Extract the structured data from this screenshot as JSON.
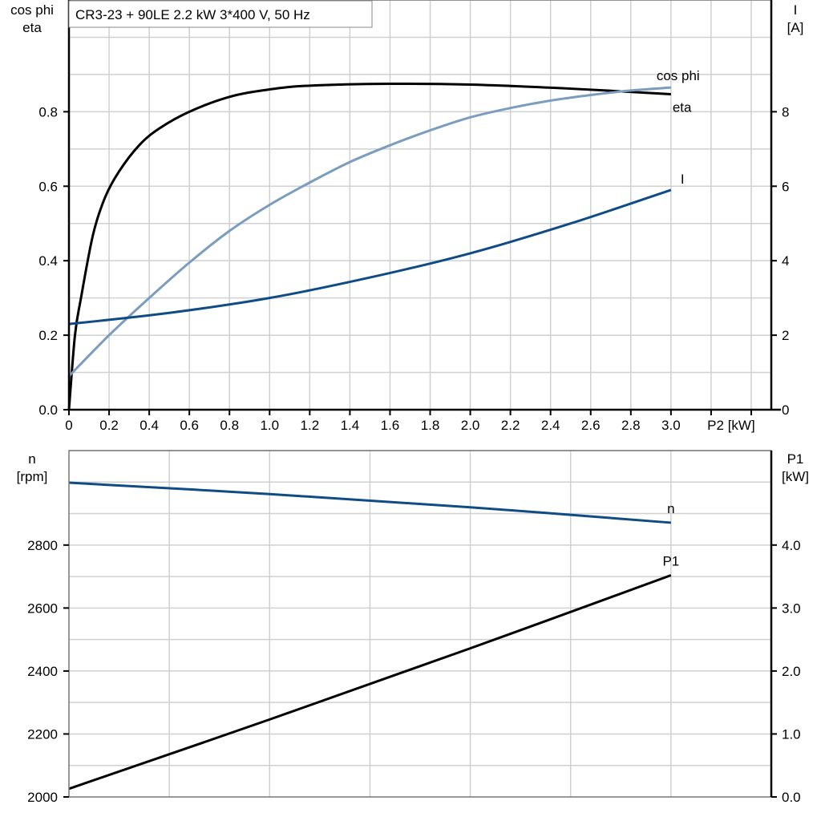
{
  "title": "CR3-23 + 90LE   2.2 kW   3*400 V, 50 Hz",
  "chart_data": [
    {
      "type": "line",
      "xlabel": "P2 [kW]",
      "xlim": [
        0,
        3.5
      ],
      "xticks": [
        "0",
        "0.2",
        "0.4",
        "0.6",
        "0.8",
        "1.0",
        "1.2",
        "1.4",
        "1.6",
        "1.8",
        "2.0",
        "2.2",
        "2.4",
        "2.6",
        "2.8",
        "3.0"
      ],
      "ylabel_left": [
        "cos phi",
        "eta"
      ],
      "ylim_left": [
        0,
        1.1
      ],
      "yticks_left": [
        "0.0",
        "0.2",
        "0.4",
        "0.6",
        "0.8"
      ],
      "ylabel_right": [
        "I",
        "[A]"
      ],
      "ylim_right": [
        0,
        11
      ],
      "yticks_right": [
        "0",
        "2",
        "4",
        "6",
        "8"
      ],
      "grid": true,
      "series": [
        {
          "name": "eta",
          "axis": "left",
          "color": "#000000",
          "x": [
            0,
            0.03,
            0.06,
            0.12,
            0.18,
            0.25,
            0.35,
            0.45,
            0.6,
            0.8,
            1.0,
            1.2,
            1.6,
            2.0,
            2.5,
            3.0
          ],
          "y": [
            0,
            0.2,
            0.3,
            0.47,
            0.57,
            0.64,
            0.71,
            0.755,
            0.8,
            0.84,
            0.86,
            0.87,
            0.875,
            0.873,
            0.862,
            0.847
          ]
        },
        {
          "name": "cos phi",
          "axis": "left",
          "color": "#7a9cbf",
          "x": [
            0,
            0.2,
            0.4,
            0.6,
            0.8,
            1.0,
            1.2,
            1.4,
            1.6,
            1.8,
            2.0,
            2.2,
            2.4,
            2.6,
            2.8,
            3.0
          ],
          "y": [
            0.09,
            0.2,
            0.3,
            0.395,
            0.48,
            0.55,
            0.61,
            0.665,
            0.71,
            0.75,
            0.785,
            0.81,
            0.83,
            0.845,
            0.857,
            0.865
          ]
        },
        {
          "name": "I",
          "axis": "right",
          "color": "#0f4c85",
          "x": [
            0,
            0.5,
            1.0,
            1.5,
            2.0,
            2.5,
            3.0
          ],
          "y": [
            2.3,
            2.6,
            3.0,
            3.55,
            4.2,
            5.0,
            5.9
          ]
        }
      ]
    },
    {
      "type": "line",
      "xlim": [
        0,
        3.5
      ],
      "ylabel_left": [
        "n",
        "[rpm]"
      ],
      "ylim_left": [
        2000,
        3100
      ],
      "yticks_left": [
        "2000",
        "2200",
        "2400",
        "2600",
        "2800"
      ],
      "ylabel_right": [
        "P1",
        "[kW]"
      ],
      "ylim_right": [
        0,
        5.5
      ],
      "yticks_right": [
        "0.0",
        "1.0",
        "2.0",
        "3.0",
        "4.0"
      ],
      "grid": true,
      "series": [
        {
          "name": "n",
          "axis": "left",
          "color": "#0f4c85",
          "x": [
            0,
            1.0,
            2.0,
            3.0
          ],
          "y": [
            2998,
            2962,
            2920,
            2871
          ]
        },
        {
          "name": "P1",
          "axis": "right",
          "color": "#000000",
          "x": [
            0,
            1.0,
            2.0,
            3.0
          ],
          "y": [
            0.13,
            1.23,
            2.36,
            3.52
          ]
        }
      ]
    }
  ]
}
